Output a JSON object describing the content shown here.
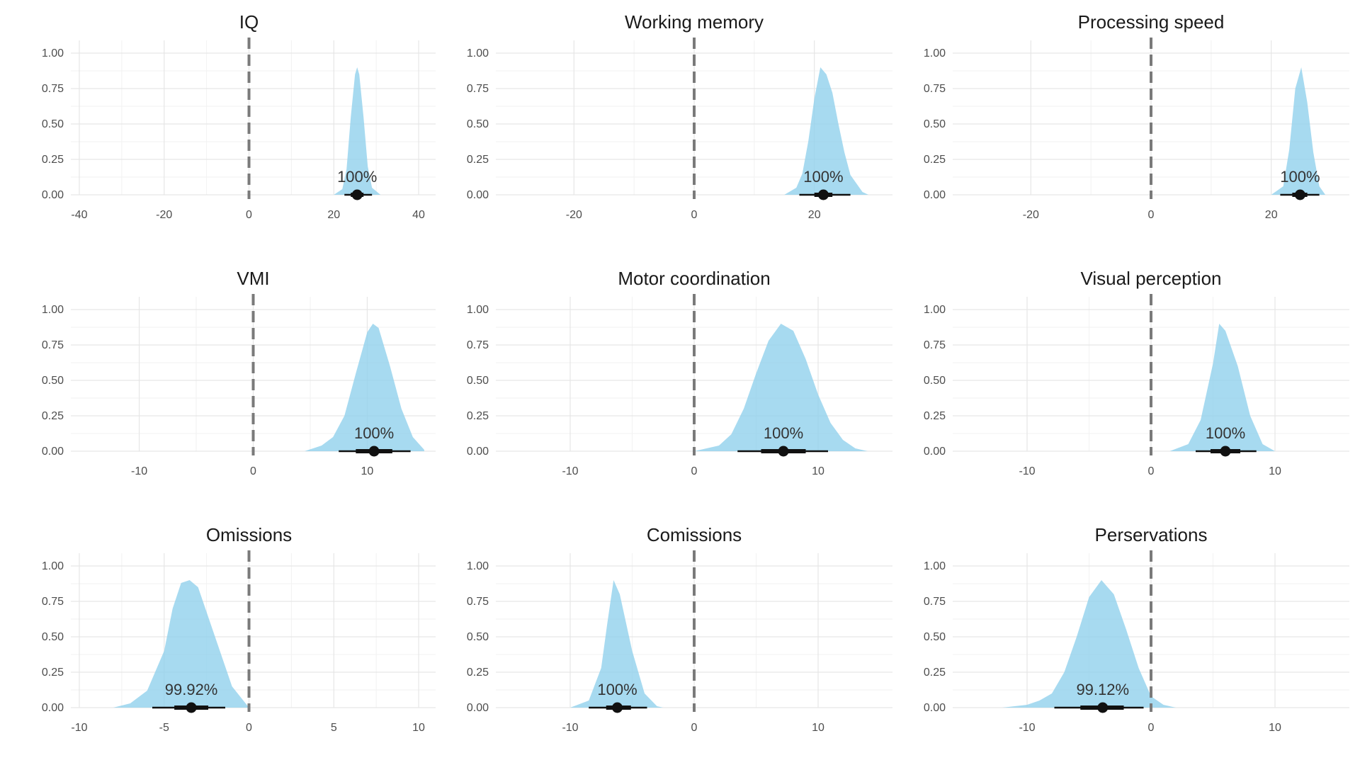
{
  "chart_data": [
    {
      "type": "area",
      "title": "IQ",
      "xlim": [
        -42,
        44
      ],
      "ylim": [
        0,
        1.04
      ],
      "x_ticks": [
        -40,
        -20,
        0,
        20,
        40
      ],
      "x_tick_labels": [
        "-40",
        "-20",
        "0",
        "20",
        "40"
      ],
      "y_ticks": [
        0,
        0.25,
        0.5,
        0.75,
        1
      ],
      "y_tick_labels": [
        "0.00",
        "0.25",
        "0.50",
        "0.75",
        "1.00"
      ],
      "reference_x": 0,
      "density": {
        "x": [
          20,
          22,
          23,
          24,
          25,
          25.5,
          26,
          27,
          28,
          29,
          31
        ],
        "y": [
          0,
          0.04,
          0.18,
          0.55,
          0.85,
          0.9,
          0.85,
          0.55,
          0.2,
          0.05,
          0
        ]
      },
      "point": 25.5,
      "interval_inner": [
        24,
        27
      ],
      "interval_outer": [
        22.5,
        29
      ],
      "prob_label": "100%"
    },
    {
      "type": "area",
      "title": "Working memory",
      "xlim": [
        -33,
        33
      ],
      "ylim": [
        0,
        1.04
      ],
      "x_ticks": [
        -20,
        0,
        20
      ],
      "x_tick_labels": [
        "-20",
        "0",
        "20"
      ],
      "y_ticks": [
        0,
        0.25,
        0.5,
        0.75,
        1
      ],
      "y_tick_labels": [
        "0.00",
        "0.25",
        "0.50",
        "0.75",
        "1.00"
      ],
      "reference_x": 0,
      "density": {
        "x": [
          15,
          17,
          18,
          19,
          20,
          21,
          22,
          23,
          24,
          25,
          26,
          28,
          29
        ],
        "y": [
          0,
          0.05,
          0.15,
          0.38,
          0.68,
          0.9,
          0.85,
          0.72,
          0.5,
          0.3,
          0.14,
          0.02,
          0
        ]
      },
      "point": 21.5,
      "interval_inner": [
        20,
        23
      ],
      "interval_outer": [
        17.5,
        26
      ],
      "prob_label": "100%"
    },
    {
      "type": "area",
      "title": "Processing speed",
      "xlim": [
        -33,
        33
      ],
      "ylim": [
        0,
        1.04
      ],
      "x_ticks": [
        -20,
        0,
        20
      ],
      "x_tick_labels": [
        "-20",
        "0",
        "20"
      ],
      "y_ticks": [
        0,
        0.25,
        0.5,
        0.75,
        1
      ],
      "y_tick_labels": [
        "0.00",
        "0.25",
        "0.50",
        "0.75",
        "1.00"
      ],
      "reference_x": 0,
      "density": {
        "x": [
          20,
          22,
          23,
          24,
          25,
          26,
          27,
          28,
          29
        ],
        "y": [
          0,
          0.06,
          0.32,
          0.75,
          0.9,
          0.65,
          0.3,
          0.06,
          0
        ]
      },
      "point": 24.8,
      "interval_inner": [
        23.5,
        26
      ],
      "interval_outer": [
        21.5,
        28
      ],
      "prob_label": "100%"
    },
    {
      "type": "area",
      "title": "VMI",
      "xlim": [
        -16,
        16
      ],
      "ylim": [
        0,
        1.04
      ],
      "x_ticks": [
        -10,
        0,
        10
      ],
      "x_tick_labels": [
        "-10",
        "0",
        "10"
      ],
      "y_ticks": [
        0,
        0.25,
        0.5,
        0.75,
        1
      ],
      "y_tick_labels": [
        "0.00",
        "0.25",
        "0.50",
        "0.75",
        "1.00"
      ],
      "reference_x": 0,
      "density": {
        "x": [
          4.5,
          6,
          7,
          8,
          9,
          10,
          10.5,
          11,
          12,
          13,
          14,
          15
        ],
        "y": [
          0,
          0.04,
          0.1,
          0.25,
          0.55,
          0.84,
          0.9,
          0.87,
          0.6,
          0.3,
          0.1,
          0.01
        ]
      },
      "point": 10.6,
      "interval_inner": [
        9,
        12.2
      ],
      "interval_outer": [
        7.5,
        13.8
      ],
      "prob_label": "100%"
    },
    {
      "type": "area",
      "title": "Motor coordination",
      "xlim": [
        -16,
        16
      ],
      "ylim": [
        0,
        1.04
      ],
      "x_ticks": [
        -10,
        0,
        10
      ],
      "x_tick_labels": [
        "-10",
        "0",
        "10"
      ],
      "y_ticks": [
        0,
        0.25,
        0.5,
        0.75,
        1
      ],
      "y_tick_labels": [
        "0.00",
        "0.25",
        "0.50",
        "0.75",
        "1.00"
      ],
      "reference_x": 0,
      "density": {
        "x": [
          0,
          2,
          3,
          4,
          5,
          6,
          7,
          8,
          9,
          10,
          11,
          12,
          13,
          14
        ],
        "y": [
          0,
          0.04,
          0.12,
          0.3,
          0.55,
          0.78,
          0.9,
          0.85,
          0.65,
          0.4,
          0.2,
          0.08,
          0.02,
          0
        ]
      },
      "point": 7.2,
      "interval_inner": [
        5.4,
        9
      ],
      "interval_outer": [
        3.5,
        10.8
      ],
      "prob_label": "100%"
    },
    {
      "type": "area",
      "title": "Visual perception",
      "xlim": [
        -16,
        16
      ],
      "ylim": [
        0,
        1.04
      ],
      "x_ticks": [
        -10,
        0,
        10
      ],
      "x_tick_labels": [
        "-10",
        "0",
        "10"
      ],
      "y_ticks": [
        0,
        0.25,
        0.5,
        0.75,
        1
      ],
      "y_tick_labels": [
        "0.00",
        "0.25",
        "0.50",
        "0.75",
        "1.00"
      ],
      "reference_x": 0,
      "density": {
        "x": [
          1.5,
          3,
          4,
          5,
          5.5,
          6,
          7,
          8,
          9,
          10
        ],
        "y": [
          0,
          0.05,
          0.22,
          0.62,
          0.9,
          0.85,
          0.6,
          0.25,
          0.05,
          0
        ]
      },
      "point": 6,
      "interval_inner": [
        4.8,
        7.2
      ],
      "interval_outer": [
        3.6,
        8.5
      ],
      "prob_label": "100%"
    },
    {
      "type": "area",
      "title": "Omissions",
      "xlim": [
        -10.5,
        11
      ],
      "ylim": [
        0,
        1.04
      ],
      "x_ticks": [
        -10,
        -5,
        0,
        5,
        10
      ],
      "x_tick_labels": [
        "-10",
        "-5",
        "0",
        "5",
        "10"
      ],
      "y_ticks": [
        0,
        0.25,
        0.5,
        0.75,
        1
      ],
      "y_tick_labels": [
        "0.00",
        "0.25",
        "0.50",
        "0.75",
        "1.00"
      ],
      "reference_x": 0,
      "density": {
        "x": [
          -8,
          -7,
          -6,
          -5,
          -4.5,
          -4,
          -3.5,
          -3,
          -2,
          -1,
          0
        ],
        "y": [
          0,
          0.03,
          0.12,
          0.4,
          0.7,
          0.88,
          0.9,
          0.85,
          0.5,
          0.15,
          0
        ]
      },
      "point": -3.4,
      "interval_inner": [
        -4.4,
        -2.4
      ],
      "interval_outer": [
        -5.7,
        -1.4
      ],
      "prob_label": "99.92%"
    },
    {
      "type": "area",
      "title": "Comissions",
      "xlim": [
        -16,
        16
      ],
      "ylim": [
        0,
        1.04
      ],
      "x_ticks": [
        -10,
        0,
        10
      ],
      "x_tick_labels": [
        "-10",
        "0",
        "10"
      ],
      "y_ticks": [
        0,
        0.25,
        0.5,
        0.75,
        1
      ],
      "y_tick_labels": [
        "0.00",
        "0.25",
        "0.50",
        "0.75",
        "1.00"
      ],
      "reference_x": 0,
      "density": {
        "x": [
          -10,
          -8.5,
          -7.5,
          -7,
          -6.5,
          -6,
          -5,
          -4,
          -3,
          -2.5
        ],
        "y": [
          0,
          0.05,
          0.28,
          0.6,
          0.9,
          0.8,
          0.4,
          0.1,
          0.01,
          0
        ]
      },
      "point": -6.2,
      "interval_inner": [
        -7.1,
        -5.1
      ],
      "interval_outer": [
        -8.5,
        -3.8
      ],
      "prob_label": "100%"
    },
    {
      "type": "area",
      "title": "Perservations",
      "xlim": [
        -16,
        16
      ],
      "ylim": [
        0,
        1.04
      ],
      "x_ticks": [
        -10,
        0,
        10
      ],
      "x_tick_labels": [
        "-10",
        "0",
        "10"
      ],
      "y_ticks": [
        0,
        0.25,
        0.5,
        0.75,
        1
      ],
      "y_tick_labels": [
        "0.00",
        "0.25",
        "0.50",
        "0.75",
        "1.00"
      ],
      "reference_x": 0,
      "density": {
        "x": [
          -12,
          -10,
          -9,
          -8,
          -7,
          -6,
          -5,
          -4,
          -3,
          -2,
          -1,
          0,
          1,
          2
        ],
        "y": [
          0,
          0.02,
          0.05,
          0.1,
          0.25,
          0.5,
          0.78,
          0.9,
          0.8,
          0.55,
          0.28,
          0.08,
          0.02,
          0
        ]
      },
      "point": -3.9,
      "interval_inner": [
        -5.7,
        -2.2
      ],
      "interval_outer": [
        -7.8,
        -0.6
      ],
      "prob_label": "99.12%"
    }
  ]
}
